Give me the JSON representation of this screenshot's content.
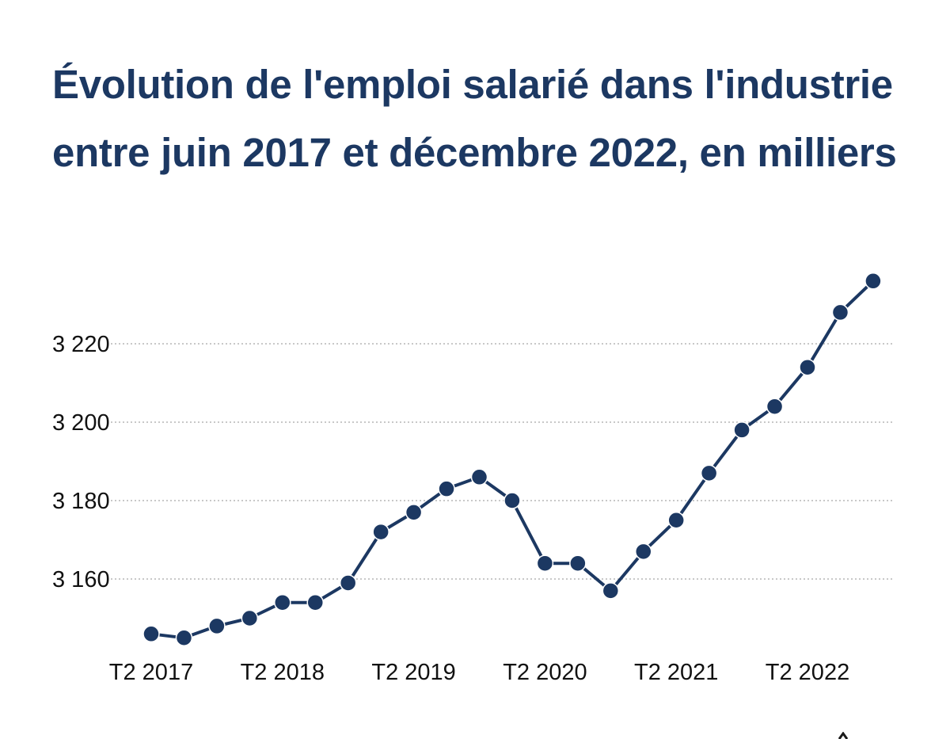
{
  "title": "Évolution de l'emploi salarié dans l'industrie entre juin 2017 et décembre 2022, en milliers",
  "colors": {
    "title": "#1c3862",
    "series": "#1c3862",
    "grid": "#c8c8c8",
    "text": "#111111"
  },
  "chart_data": {
    "type": "line",
    "title": "Évolution de l'emploi salarié dans l'industrie entre juin 2017 et décembre 2022, en milliers",
    "xlabel": "",
    "ylabel": "",
    "x_tick_labels": [
      "T2 2017",
      "T2 2018",
      "T2 2019",
      "T2 2020",
      "T2 2021",
      "T2 2022"
    ],
    "y_ticks": [
      3160,
      3180,
      3200,
      3220
    ],
    "y_tick_labels": [
      "3 160",
      "3 180",
      "3 200",
      "3 220"
    ],
    "ylim": [
      3140,
      3240
    ],
    "grid": "horizontal dotted",
    "legend": "none",
    "x": [
      "T2 2017",
      "T3 2017",
      "T4 2017",
      "T1 2018",
      "T2 2018",
      "T3 2018",
      "T4 2018",
      "T1 2019",
      "T2 2019",
      "T3 2019",
      "T4 2019",
      "T1 2020",
      "T2 2020",
      "T3 2020",
      "T4 2020",
      "T1 2021",
      "T2 2021",
      "T3 2021",
      "T4 2021",
      "T1 2022",
      "T2 2022",
      "T3 2022",
      "T4 2022"
    ],
    "values": [
      3146,
      3145,
      3148,
      3150,
      3154,
      3154,
      3159,
      3172,
      3177,
      3183,
      3186,
      3180,
      3164,
      3164,
      3157,
      3167,
      3175,
      3187,
      3198,
      3204,
      3214,
      3228,
      3236
    ]
  }
}
